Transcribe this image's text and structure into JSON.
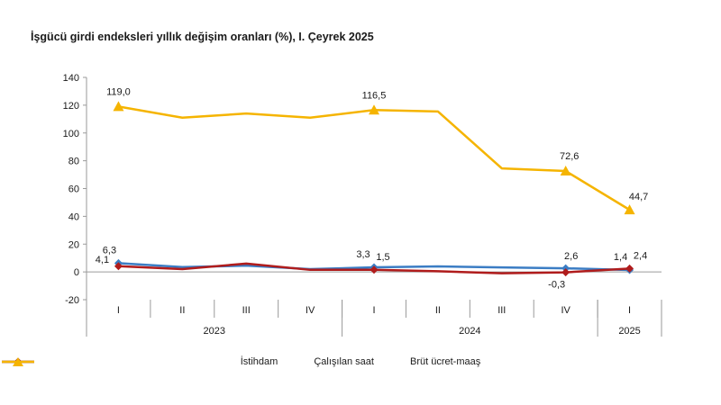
{
  "chart_data": {
    "type": "line",
    "title": "İşgücü girdi endeksleri yıllık değişim oranları (%), I. Çeyrek 2025",
    "xlabel": "",
    "ylabel": "",
    "ylim": [
      -20,
      140
    ],
    "yticks": [
      "-20",
      "0",
      "20",
      "40",
      "60",
      "80",
      "100",
      "120",
      "140"
    ],
    "ytick_values": [
      -20,
      0,
      20,
      40,
      60,
      80,
      100,
      120,
      140
    ],
    "categories": [
      "I",
      "II",
      "III",
      "IV",
      "I",
      "II",
      "III",
      "IV",
      "I"
    ],
    "year_groups": [
      {
        "label": "2023",
        "start": 0,
        "end": 3
      },
      {
        "label": "2024",
        "start": 4,
        "end": 7
      },
      {
        "label": "2025",
        "start": 8,
        "end": 8
      }
    ],
    "grid": false,
    "legend_position": "bottom",
    "series": [
      {
        "name": "İstihdam",
        "color": "#3b7dc4",
        "marker": "diamond",
        "values": [
          6.3,
          3.5,
          4.5,
          2.0,
          3.3,
          4.0,
          3.2,
          2.6,
          1.4
        ],
        "labels": [
          "6,3",
          "",
          "",
          "",
          "3,3",
          "",
          "",
          "2,6",
          "1,4"
        ]
      },
      {
        "name": "Çalışılan saat",
        "color": "#b01c1c",
        "marker": "diamond",
        "values": [
          4.1,
          2.0,
          6.0,
          1.5,
          1.5,
          0.5,
          -1.0,
          -0.3,
          2.4
        ],
        "labels": [
          "4,1",
          "",
          "",
          "",
          "1,5",
          "",
          "",
          "-0,3",
          "2,4"
        ]
      },
      {
        "name": "Brüt ücret-maaş",
        "color": "#f5b400",
        "marker": "triangle",
        "values": [
          119.0,
          111.0,
          114.0,
          111.0,
          116.5,
          115.5,
          74.5,
          72.6,
          44.7
        ],
        "labels": [
          "119,0",
          "",
          "",
          "",
          "116,5",
          "",
          "",
          "72,6",
          "44,7"
        ]
      }
    ]
  }
}
